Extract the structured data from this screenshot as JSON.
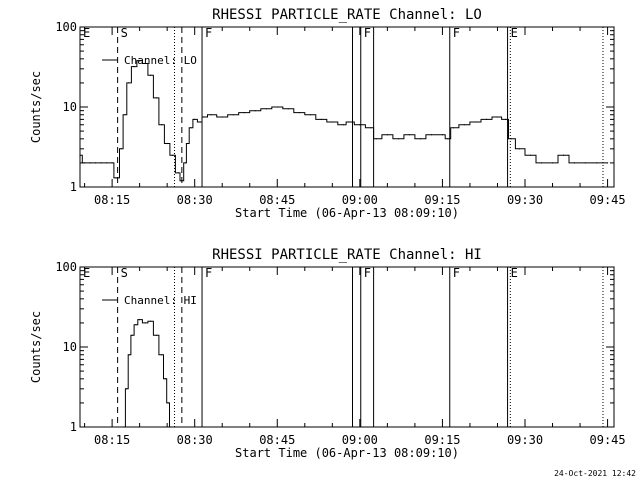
{
  "footer_timestamp": "24-Oct-2021 12:42",
  "chart_data": [
    {
      "type": "line",
      "title": "RHESSI PARTICLE_RATE Channel: LO",
      "xlabel": "Start Time (06-Apr-13 08:09:10)",
      "ylabel": "Counts/sec",
      "y_scale": "log",
      "ylim": [
        1,
        100
      ],
      "y_tick_labels": [
        "1",
        "10",
        "100"
      ],
      "xlim_minutes_after_start": [
        0,
        97
      ],
      "x_tick_labels": [
        "08:15",
        "08:30",
        "08:45",
        "09:00",
        "09:15",
        "09:30",
        "09:45"
      ],
      "legend": "Channel: LO",
      "legend_position": "top-left",
      "markers": [
        {
          "label": "E",
          "time": "08:09:10",
          "style": "none"
        },
        {
          "label": "S",
          "time": "08:16:00",
          "style": "dashed"
        },
        {
          "label": "",
          "time": "08:26:20",
          "style": "dotted"
        },
        {
          "label": "",
          "time": "08:27:40",
          "style": "dashed"
        },
        {
          "label": "F",
          "time": "08:31:20",
          "style": "solid"
        },
        {
          "label": "",
          "time": "08:58:40",
          "style": "solid"
        },
        {
          "label": "F",
          "time": "09:00:10",
          "style": "solid"
        },
        {
          "label": "",
          "time": "09:02:30",
          "style": "solid"
        },
        {
          "label": "F",
          "time": "09:16:20",
          "style": "solid"
        },
        {
          "label": "E",
          "time": "09:26:50",
          "style": "solid"
        },
        {
          "label": "",
          "time": "09:27:20",
          "style": "dotted"
        },
        {
          "label": "",
          "time": "09:44:10",
          "style": "dotted"
        }
      ],
      "series": [
        {
          "x": [
            "08:09:10",
            "08:10:00",
            "08:11:00",
            "08:12:00",
            "08:13:00",
            "08:14:00",
            "08:15:00",
            "08:15:40",
            "08:16:00",
            "08:16:40",
            "08:17:20",
            "08:18:00",
            "08:19:00",
            "08:20:00",
            "08:21:00",
            "08:22:00",
            "08:23:00",
            "08:24:00",
            "08:25:00",
            "08:26:00",
            "08:27:00",
            "08:27:40",
            "08:28:20",
            "08:28:40",
            "08:29:20",
            "08:30:00",
            "08:31:00",
            "08:31:40",
            "08:33:00",
            "08:35:00",
            "08:37:00",
            "08:39:00",
            "08:41:00",
            "08:43:00",
            "08:45:00",
            "08:47:00",
            "08:49:00",
            "08:51:00",
            "08:53:00",
            "08:55:00",
            "08:57:00",
            "08:58:00",
            "09:00:00",
            "09:02:00",
            "09:03:00",
            "09:05:00",
            "09:07:00",
            "09:09:00",
            "09:11:00",
            "09:13:00",
            "09:15:00",
            "09:16:00",
            "09:17:00",
            "09:19:00",
            "09:21:00",
            "09:23:00",
            "09:25:00",
            "09:26:30",
            "09:27:30",
            "09:29:00",
            "09:31:00",
            "09:33:00",
            "09:35:00",
            "09:37:00",
            "09:39:00",
            "09:41:00",
            "09:43:00",
            "09:45:00"
          ],
          "y": [
            2.5,
            2.0,
            2.0,
            2.0,
            2.0,
            2.0,
            2.0,
            1.3,
            1.3,
            3.0,
            8.0,
            20,
            32,
            38,
            35,
            25,
            13,
            6.0,
            3.5,
            2.5,
            1.5,
            1.2,
            2.0,
            3.5,
            5.5,
            7.0,
            6.5,
            7.5,
            8.0,
            7.5,
            8.0,
            8.5,
            9.0,
            9.5,
            10,
            9.5,
            8.5,
            8.0,
            7.0,
            6.5,
            6.0,
            6.5,
            6.0,
            5.5,
            4.0,
            4.5,
            4.0,
            4.5,
            4.0,
            4.5,
            4.5,
            4.0,
            5.5,
            6.0,
            6.5,
            7.0,
            7.5,
            7.0,
            4.0,
            3.0,
            2.5,
            2.0,
            2.0,
            2.5,
            2.0,
            2.0,
            2.0,
            2.0
          ]
        }
      ]
    },
    {
      "type": "line",
      "title": "RHESSI PARTICLE_RATE Channel: HI",
      "xlabel": "Start Time (06-Apr-13 08:09:10)",
      "ylabel": "Counts/sec",
      "y_scale": "log",
      "ylim": [
        1,
        100
      ],
      "y_tick_labels": [
        "1",
        "10",
        "100"
      ],
      "xlim_minutes_after_start": [
        0,
        97
      ],
      "x_tick_labels": [
        "08:15",
        "08:30",
        "08:45",
        "09:00",
        "09:15",
        "09:30",
        "09:45"
      ],
      "legend": "Channel: HI",
      "legend_position": "top-left",
      "markers": [
        {
          "label": "E",
          "time": "08:09:10",
          "style": "none"
        },
        {
          "label": "S",
          "time": "08:16:00",
          "style": "dashed"
        },
        {
          "label": "",
          "time": "08:26:20",
          "style": "dotted"
        },
        {
          "label": "",
          "time": "08:27:40",
          "style": "dashed"
        },
        {
          "label": "F",
          "time": "08:31:20",
          "style": "solid"
        },
        {
          "label": "",
          "time": "08:58:40",
          "style": "solid"
        },
        {
          "label": "F",
          "time": "09:00:10",
          "style": "solid"
        },
        {
          "label": "",
          "time": "09:02:30",
          "style": "solid"
        },
        {
          "label": "F",
          "time": "09:16:20",
          "style": "solid"
        },
        {
          "label": "E",
          "time": "09:26:50",
          "style": "solid"
        },
        {
          "label": "",
          "time": "09:27:20",
          "style": "dotted"
        },
        {
          "label": "",
          "time": "09:44:10",
          "style": "dotted"
        }
      ],
      "series": [
        {
          "x": [
            "08:17:10",
            "08:17:40",
            "08:18:10",
            "08:18:40",
            "08:19:20",
            "08:20:00",
            "08:21:00",
            "08:22:00",
            "08:23:00",
            "08:24:00",
            "08:24:40",
            "08:25:10",
            "08:25:40"
          ],
          "y": [
            1.0,
            3.0,
            8.0,
            14,
            19,
            22,
            20,
            21,
            14,
            8.0,
            4.0,
            2.0,
            1.0
          ]
        }
      ]
    }
  ]
}
